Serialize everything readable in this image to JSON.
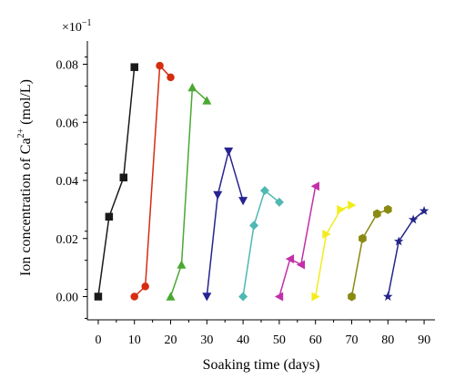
{
  "chart_data": {
    "type": "line",
    "xlabel": "Soaking time (days)",
    "ylabel": "Ion concentration of Ca",
    "ylabel_superscript": "2+",
    "ylabel_unit": " (mol/L)",
    "y_multiplier": "×10",
    "y_multiplier_exp": "−1",
    "xlim": [
      -3,
      93
    ],
    "ylim": [
      -0.008,
      0.088
    ],
    "x_ticks": [
      0,
      10,
      20,
      30,
      40,
      50,
      60,
      70,
      80,
      90
    ],
    "y_ticks": [
      0.0,
      0.02,
      0.04,
      0.06,
      0.08
    ],
    "y_tick_labels": [
      "0.00",
      "0.02",
      "0.04",
      "0.06",
      "0.08"
    ],
    "grid": false,
    "series": [
      {
        "marker": "square",
        "color": "#1a1a1a",
        "points": [
          [
            0,
            0.0
          ],
          [
            3,
            0.0275
          ],
          [
            7,
            0.041
          ],
          [
            10,
            0.079
          ]
        ]
      },
      {
        "marker": "circle",
        "color": "#d62c0f",
        "points": [
          [
            10,
            0.0
          ],
          [
            13,
            0.0035
          ],
          [
            17,
            0.0795
          ],
          [
            20,
            0.0755
          ]
        ]
      },
      {
        "marker": "triangle-up",
        "color": "#4aa832",
        "points": [
          [
            20,
            0.0
          ],
          [
            23,
            0.011
          ],
          [
            26,
            0.072
          ],
          [
            30,
            0.0675
          ]
        ]
      },
      {
        "marker": "triangle-down",
        "color": "#27238f",
        "points": [
          [
            30,
            0.0
          ],
          [
            33,
            0.035
          ],
          [
            36,
            0.05
          ],
          [
            40,
            0.033
          ]
        ]
      },
      {
        "marker": "diamond",
        "color": "#4fb8b2",
        "points": [
          [
            40,
            0.0
          ],
          [
            43,
            0.0245
          ],
          [
            46,
            0.0365
          ],
          [
            50,
            0.0325
          ]
        ]
      },
      {
        "marker": "triangle-left",
        "color": "#c22fa8",
        "points": [
          [
            50,
            0.0
          ],
          [
            53,
            0.013
          ],
          [
            56,
            0.011
          ],
          [
            60,
            0.038
          ]
        ]
      },
      {
        "marker": "triangle-right",
        "color": "#f2ec1c",
        "points": [
          [
            60,
            0.0
          ],
          [
            63,
            0.0215
          ],
          [
            67,
            0.03
          ],
          [
            70,
            0.0315
          ]
        ]
      },
      {
        "marker": "hexagon",
        "color": "#8a8a12",
        "points": [
          [
            70,
            0.0
          ],
          [
            73,
            0.02
          ],
          [
            77,
            0.0285
          ],
          [
            80,
            0.03
          ]
        ]
      },
      {
        "marker": "star",
        "color": "#232489",
        "points": [
          [
            80,
            0.0
          ],
          [
            83,
            0.019
          ],
          [
            87,
            0.0265
          ],
          [
            90,
            0.0295
          ]
        ]
      }
    ]
  }
}
